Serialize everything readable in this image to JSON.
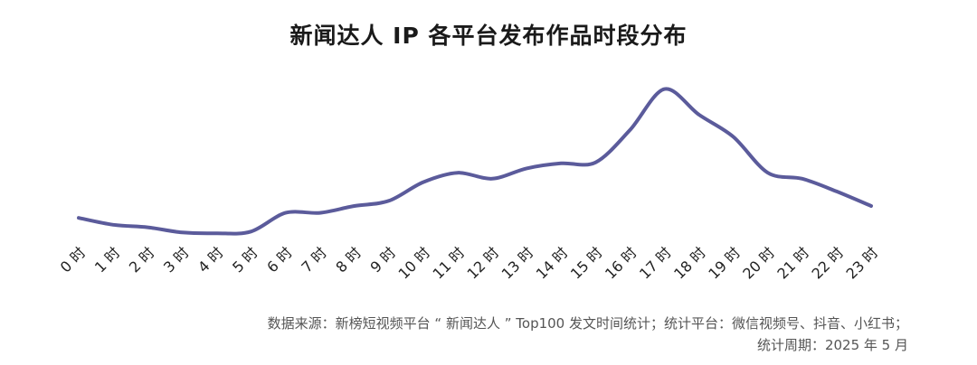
{
  "chart_data": {
    "type": "line",
    "title": "新闻达人 IP 各平台发布作品时段分布",
    "xlabel": "",
    "ylabel": "",
    "x": [
      "0 时",
      "1 时",
      "2 时",
      "3 时",
      "4 时",
      "5 时",
      "6 时",
      "7 时",
      "8 时",
      "9 时",
      "10 时",
      "11 时",
      "12 时",
      "13 时",
      "14 时",
      "15 时",
      "16 时",
      "17 时",
      "18 时",
      "19 时",
      "20 时",
      "21 时",
      "22 时",
      "23 时"
    ],
    "series": [
      {
        "values": [
          1.7,
          0.9,
          0.6,
          0.0,
          -0.1,
          0.1,
          2.3,
          2.3,
          3.1,
          3.7,
          5.9,
          7.0,
          6.3,
          7.5,
          8.1,
          8.2,
          12.0,
          16.8,
          13.8,
          11.2,
          7.0,
          6.3,
          4.8,
          3.1
        ]
      }
    ],
    "ylim": [
      -0.5,
      17.5
    ],
    "grid": false,
    "legend": "none",
    "line_color": "#5b5b9b"
  },
  "notes": {
    "source_line": "数据来源：新榜短视频平台 “ 新闻达人 ” Top100 发文时间统计；统计平台：微信视频号、抖音、小红书；",
    "period_line": "统计周期：2025 年 5 月"
  }
}
